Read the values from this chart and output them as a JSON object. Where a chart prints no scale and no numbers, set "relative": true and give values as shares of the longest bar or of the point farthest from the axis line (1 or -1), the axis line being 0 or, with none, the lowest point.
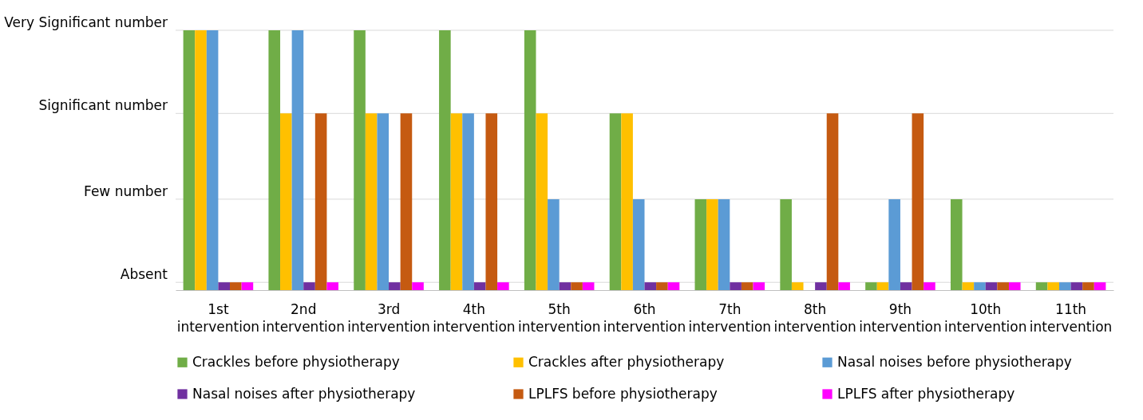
{
  "chart_data": {
    "type": "bar",
    "relative": true,
    "categories": [
      "1st intervention",
      "2nd intervention",
      "3rd intervention",
      "4th intervention",
      "5th intervention",
      "6th intervention",
      "7th intervention",
      "8th intervention",
      "9th intervention",
      "10th intervention",
      "11th intervention"
    ],
    "series": [
      {
        "name": "Crackles before physiotherapy",
        "color": "#70ad47",
        "values": [
          1,
          1,
          1,
          1,
          1,
          0.68,
          0.35,
          0.35,
          0.03,
          0.35,
          0.03
        ]
      },
      {
        "name": "Crackles after physiotherapy",
        "color": "#ffc000",
        "values": [
          1,
          0.68,
          0.68,
          0.68,
          0.68,
          0.68,
          0.35,
          0.03,
          0.03,
          0.03,
          0.03
        ]
      },
      {
        "name": "Nasal noises before physiotherapy",
        "color": "#5b9bd5",
        "values": [
          1,
          1,
          0.68,
          0.68,
          0.35,
          0.35,
          0.35,
          null,
          0.35,
          0.03,
          0.03
        ]
      },
      {
        "name": "Nasal noises after physiotherapy",
        "color": "#7030a0",
        "values": [
          0.03,
          0.03,
          0.03,
          0.03,
          0.03,
          0.03,
          0.03,
          0.03,
          0.03,
          0.03,
          0.03
        ]
      },
      {
        "name": "LPLFS before physiotherapy",
        "color": "#c55a11",
        "values": [
          0.03,
          0.68,
          0.68,
          0.68,
          0.03,
          0.03,
          0.03,
          0.68,
          0.68,
          0.03,
          0.03
        ]
      },
      {
        "name": "LPLFS after physiotherapy",
        "color": "#ff00ff",
        "values": [
          0.03,
          0.03,
          0.03,
          0.03,
          0.03,
          0.03,
          0.03,
          0.03,
          0.03,
          0.03,
          0.03
        ]
      }
    ],
    "annotations": [
      "Absent",
      "Few number",
      "Significant number",
      "Very Significant number"
    ],
    "grid": "y",
    "legend": "bottom"
  }
}
